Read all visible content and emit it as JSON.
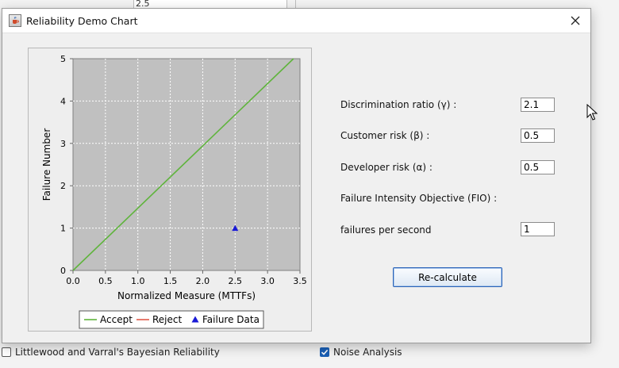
{
  "background": {
    "top_field_value": "2.5",
    "checkbox_left_label": "Littlewood and Varral's Bayesian Reliability",
    "checkbox_left_checked": false,
    "checkbox_right_label": "Noise Analysis",
    "checkbox_right_checked": true
  },
  "window": {
    "title": "Reliability Demo Chart",
    "close_icon": "close-icon",
    "app_icon": "java-cup-icon"
  },
  "form": {
    "discrimination_label": "Discrimination ratio (γ) :",
    "discrimination_value": "2.1",
    "customer_label": "Customer risk (β) :",
    "customer_value": "0.5",
    "developer_label": "Developer risk (α) :",
    "developer_value": "0.5",
    "fio_label": "Failure Intensity Objective (FIO) :",
    "fps_label": "failures per second",
    "fps_value": "1",
    "recalc_label": "Re-calculate"
  },
  "chart_data": {
    "type": "line",
    "xlabel": "Normalized Measure (MTTFs)",
    "ylabel": "Failure Number",
    "xlim": [
      0,
      3.5
    ],
    "ylim": [
      0,
      5
    ],
    "x_ticks": [
      "0.0",
      "0.5",
      "1.0",
      "1.5",
      "2.0",
      "2.5",
      "3.0",
      "3.5"
    ],
    "y_ticks": [
      "0",
      "1",
      "2",
      "3",
      "4",
      "5"
    ],
    "grid": true,
    "legend_position": "bottom",
    "series": [
      {
        "name": "Accept",
        "color": "#5fb43c",
        "kind": "line",
        "x": [
          0,
          3.4
        ],
        "y": [
          0,
          5
        ]
      },
      {
        "name": "Reject",
        "color": "#e05a4a",
        "kind": "line",
        "x": [],
        "y": []
      },
      {
        "name": "Failure Data",
        "color": "#1a1ad6",
        "kind": "marker",
        "x": [
          2.5
        ],
        "y": [
          1
        ]
      }
    ]
  }
}
